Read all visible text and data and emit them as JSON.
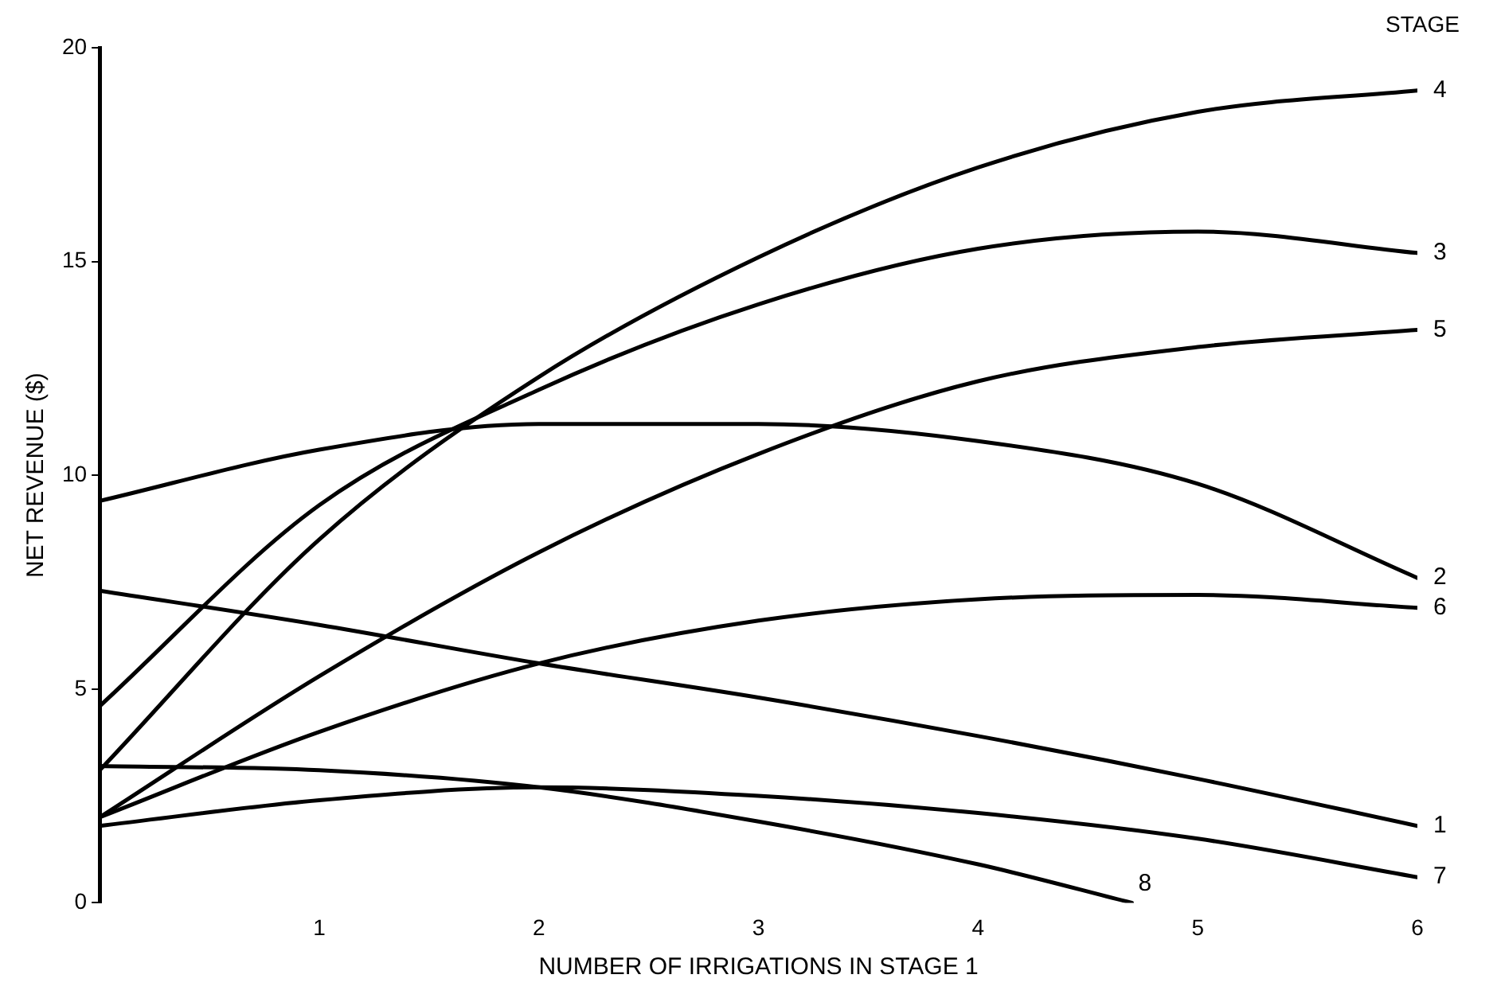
{
  "chart_data": {
    "type": "line",
    "xlabel": "NUMBER OF IRRIGATIONS IN STAGE 1",
    "ylabel": "NET REVENUE ($)",
    "legend_title": "STAGE",
    "xlim": [
      0,
      6
    ],
    "ylim": [
      0,
      20
    ],
    "xticks": [
      1,
      2,
      3,
      4,
      5,
      6
    ],
    "yticks": [
      0,
      5,
      10,
      15,
      20
    ],
    "grid": false,
    "legend": false,
    "marker": "none",
    "line_style": "solid",
    "series": [
      {
        "name": "4",
        "color": "#000000",
        "x": [
          0,
          1,
          2,
          3,
          4,
          5,
          6
        ],
        "values": [
          3.1,
          8.5,
          12.3,
          15.1,
          17.2,
          18.5,
          19.0
        ]
      },
      {
        "name": "3",
        "color": "#000000",
        "x": [
          0,
          1,
          2,
          3,
          4,
          5,
          6
        ],
        "values": [
          4.6,
          9.3,
          12.0,
          14.0,
          15.3,
          15.7,
          15.2
        ]
      },
      {
        "name": "5",
        "color": "#000000",
        "x": [
          0,
          1,
          2,
          3,
          4,
          5,
          6
        ],
        "values": [
          2.0,
          5.3,
          8.2,
          10.5,
          12.2,
          13.0,
          13.4
        ]
      },
      {
        "name": "2",
        "color": "#000000",
        "x": [
          0,
          1,
          2,
          3,
          4,
          5,
          6
        ],
        "values": [
          9.4,
          10.6,
          11.2,
          11.2,
          10.8,
          9.8,
          7.6
        ]
      },
      {
        "name": "6",
        "color": "#000000",
        "x": [
          0,
          1,
          2,
          3,
          4,
          5,
          6
        ],
        "values": [
          2.0,
          4.0,
          5.6,
          6.6,
          7.1,
          7.2,
          6.9
        ]
      },
      {
        "name": "1",
        "color": "#000000",
        "x": [
          0,
          1,
          2,
          3,
          4,
          5,
          6
        ],
        "values": [
          7.3,
          6.5,
          5.6,
          4.8,
          3.9,
          2.9,
          1.8
        ]
      },
      {
        "name": "7",
        "color": "#000000",
        "x": [
          0,
          1,
          2,
          3,
          4,
          5,
          6
        ],
        "values": [
          1.8,
          2.4,
          2.7,
          2.5,
          2.1,
          1.5,
          0.6
        ]
      },
      {
        "name": "8",
        "color": "#000000",
        "x": [
          0,
          1,
          2,
          3,
          4,
          4.7
        ],
        "values": [
          3.2,
          3.1,
          2.7,
          1.9,
          0.9,
          0
        ]
      }
    ]
  }
}
